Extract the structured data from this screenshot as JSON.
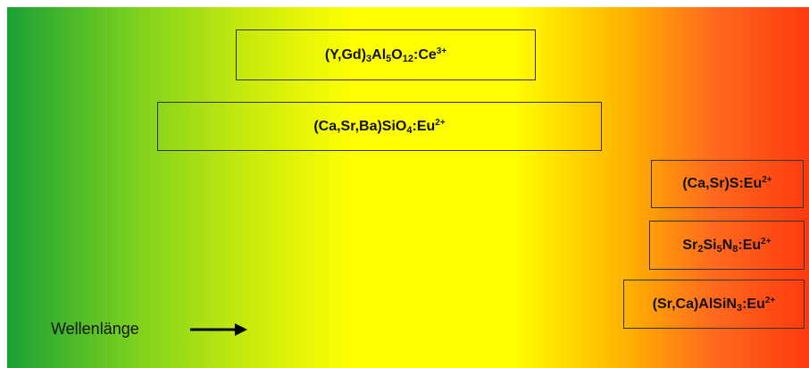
{
  "axis": {
    "label": "Wellenlänge"
  },
  "phosphors": [
    {
      "prefix": "(Y,Gd)",
      "s1": "3",
      "m1": "Al",
      "s2": "5",
      "m2": "O",
      "s3": "12",
      "suffix": ":Ce",
      "charge": "3+"
    },
    {
      "prefix": "(Ca,Sr,Ba)SiO",
      "s1": "4",
      "suffix": ":Eu",
      "charge": "2+"
    },
    {
      "prefix": "(Ca,Sr)S",
      "suffix": ":Eu",
      "charge": "2+"
    },
    {
      "prefix": "Sr",
      "s1": "2",
      "m1": "Si",
      "s2": "5",
      "m2": "N",
      "s3": "8",
      "suffix": ":Eu",
      "charge": "2+"
    },
    {
      "prefix": "(Sr,Ca)AlSiN",
      "s1": "3",
      "suffix": ":Eu",
      "charge": "2+"
    }
  ],
  "colors": {
    "green": "#1aa135",
    "yellow": "#ffff00",
    "orange": "#ffb300",
    "red": "#ff3a0e"
  }
}
